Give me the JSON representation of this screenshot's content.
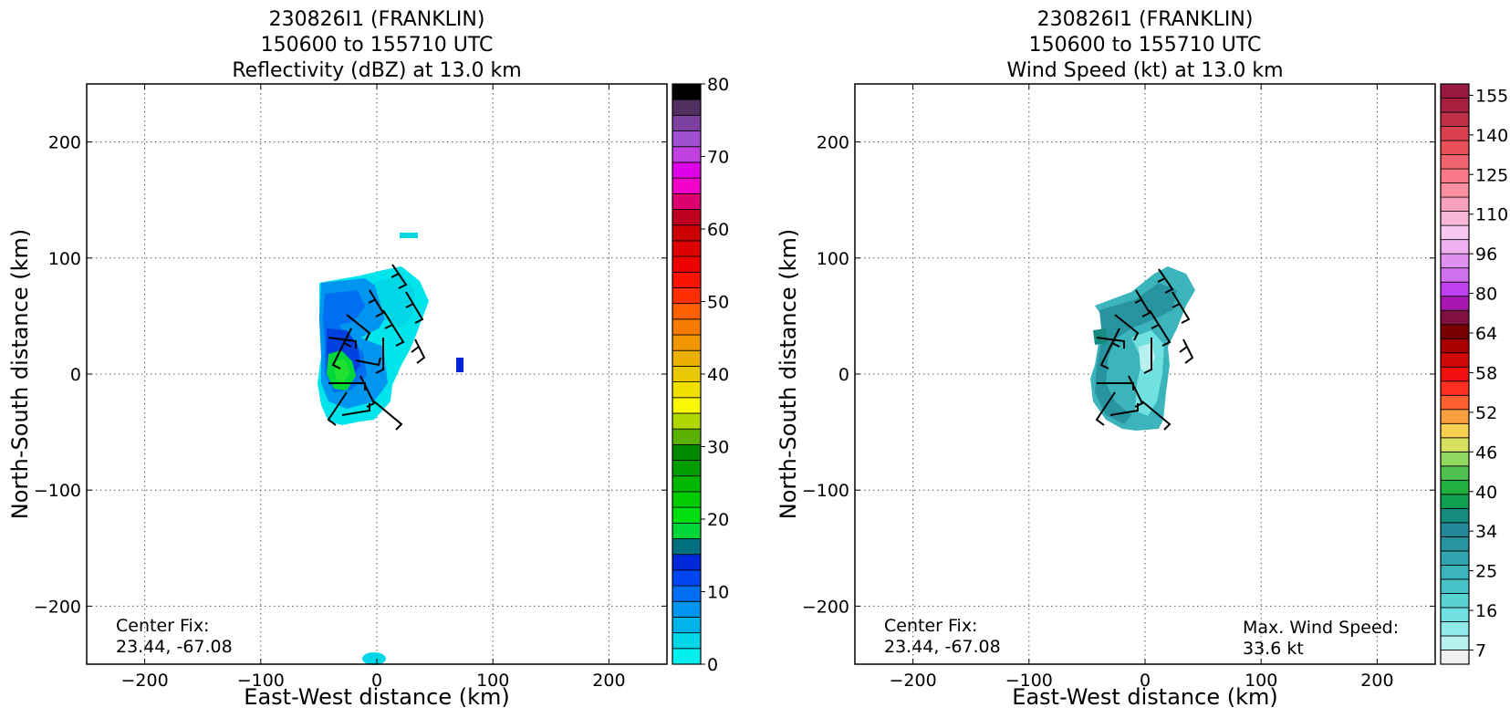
{
  "panels": [
    {
      "title_lines": [
        "230826I1 (FRANKLIN)",
        "150600 to 155710 UTC",
        "Reflectivity (dBZ) at 13.0 km"
      ],
      "xlabel": "East-West distance (km)",
      "ylabel": "North-South distance (km)",
      "center_fix": [
        "Center Fix:",
        "23.44, -67.08"
      ],
      "max_wind": null,
      "colorbar": {
        "colors": [
          "#00f0f0",
          "#00d6e6",
          "#00b4ea",
          "#0096f0",
          "#006ef0",
          "#0046f0",
          "#0028d8",
          "#007080",
          "#00d83a",
          "#00e010",
          "#00cc00",
          "#00b800",
          "#009c00",
          "#008800",
          "#5cb000",
          "#b0d800",
          "#f8f800",
          "#f0e000",
          "#e8c800",
          "#ecb000",
          "#f09600",
          "#f57c00",
          "#ff6000",
          "#ff3000",
          "#f81400",
          "#ec0000",
          "#dc0000",
          "#cc0000",
          "#c00020",
          "#dc0070",
          "#f000c8",
          "#e000e8",
          "#c040e0",
          "#a050d0",
          "#7c40a0",
          "#503060",
          "#000000"
        ],
        "ticks": [
          "0",
          "10",
          "20",
          "30",
          "40",
          "50",
          "60",
          "70",
          "80"
        ]
      }
    },
    {
      "title_lines": [
        "230826I1 (FRANKLIN)",
        "150600 to 155710 UTC",
        "Wind Speed (kt) at 13.0 km"
      ],
      "xlabel": "East-West distance (km)",
      "ylabel": "North-South distance (km)",
      "center_fix": [
        "Center Fix:",
        "23.44, -67.08"
      ],
      "max_wind": [
        "Max. Wind Speed:",
        "33.6 kt"
      ],
      "colorbar": {
        "colors": [
          "#f0f0f0",
          "#b8f0f0",
          "#90eaea",
          "#70e0e0",
          "#58d2d2",
          "#48c4c8",
          "#3cb4bc",
          "#30a4b0",
          "#2894a0",
          "#208898",
          "#168c80",
          "#10a050",
          "#20b040",
          "#50c050",
          "#90d860",
          "#d8e060",
          "#f8d050",
          "#f8a040",
          "#ff6030",
          "#ff3020",
          "#f01010",
          "#d00808",
          "#a80000",
          "#780000",
          "#801040",
          "#a818b0",
          "#c040f0",
          "#d070f0",
          "#e090f0",
          "#eeb0f0",
          "#f8c8f0",
          "#f8b8d8",
          "#f8a0c0",
          "#f890a0",
          "#f87888",
          "#f06470",
          "#e85058",
          "#d84050",
          "#c03048",
          "#a82040",
          "#981840"
        ],
        "ticks": [
          "7",
          "16",
          "25",
          "34",
          "40",
          "46",
          "52",
          "58",
          "64",
          "80",
          "96",
          "110",
          "125",
          "140",
          "155"
        ]
      }
    }
  ],
  "chart_data": [
    {
      "type": "heatmap",
      "title": "230826I1 (FRANKLIN) 150600 to 155710 UTC Reflectivity (dBZ) at 13.0 km",
      "xlabel": "East-West distance (km)",
      "ylabel": "North-South distance (km)",
      "xlim": [
        -250,
        250
      ],
      "ylim": [
        -250,
        250
      ],
      "xticks": [
        -200,
        -100,
        0,
        100,
        200
      ],
      "yticks": [
        -200,
        -100,
        0,
        100,
        200
      ],
      "grid": true,
      "colorbar_range": [
        0,
        80
      ],
      "colorbar_label_ticks": [
        0,
        10,
        20,
        30,
        40,
        50,
        60,
        70,
        80
      ],
      "annotations": [
        "Center Fix:",
        "23.44, -67.08"
      ]
    },
    {
      "type": "heatmap",
      "title": "230826I1 (FRANKLIN) 150600 to 155710 UTC Wind Speed (kt) at 13.0 km",
      "xlabel": "East-West distance (km)",
      "ylabel": "North-South distance (km)",
      "xlim": [
        -250,
        250
      ],
      "ylim": [
        -250,
        250
      ],
      "xticks": [
        -200,
        -100,
        0,
        100,
        200
      ],
      "yticks": [
        -200,
        -100,
        0,
        100,
        200
      ],
      "grid": true,
      "colorbar_label_ticks": [
        7,
        16,
        25,
        34,
        40,
        46,
        52,
        58,
        64,
        80,
        96,
        110,
        125,
        140,
        155
      ],
      "annotations": [
        "Center Fix:",
        "23.44, -67.08",
        "Max. Wind Speed:",
        "33.6 kt"
      ]
    }
  ]
}
